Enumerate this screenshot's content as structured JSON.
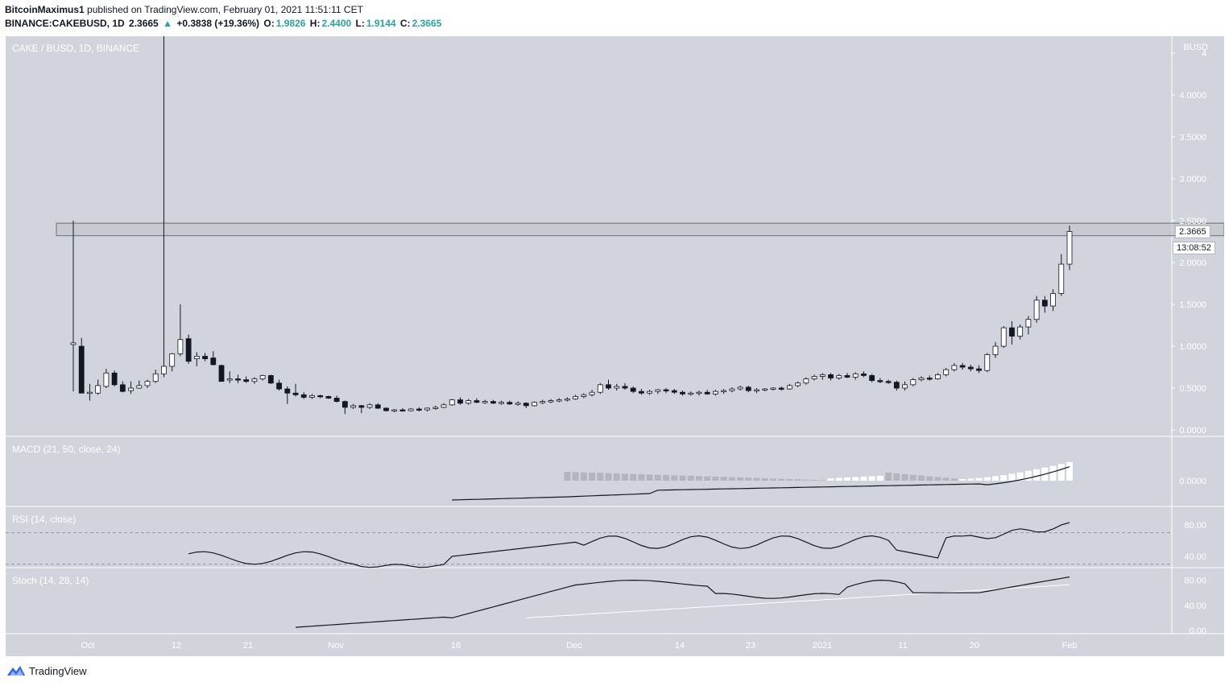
{
  "header": {
    "publisher": "BitcoinMaximus1",
    "published_text": "published on TradingView.com, February 01, 2021 11:51:11 CET",
    "symbol": "BINANCE:CAKEBUSD, 1D",
    "last": "2.3665",
    "arrow": "▲",
    "change": "+0.3838 (+19.36%)",
    "o_label": "O:",
    "o_value": "1.9826",
    "h_label": "H:",
    "h_value": "2.4400",
    "l_label": "L:",
    "l_value": "1.9144",
    "c_label": "C:",
    "c_value": "2.3665"
  },
  "colors": {
    "background": "#d1d4dc",
    "up": "#ffffff",
    "down": "#131722",
    "accent": "#26a69a"
  },
  "footer": {
    "brand": "TradingView",
    "logo_icon": "tradingview-logo-icon"
  },
  "chart_data": {
    "type": "candlestick",
    "symbol_label": "CAKE / BUSD, 1D, BINANCE",
    "currency": "BUSD",
    "y_ticks": [
      "4",
      "4.0000",
      "3.5000",
      "3.0000",
      "2.5000",
      "2.0000",
      "1.5000",
      "1.0000",
      "0.5000",
      "0.0000"
    ],
    "ylim": [
      0,
      4.5
    ],
    "x_ticks": [
      "Oct",
      "12",
      "21",
      "Nov",
      "16",
      "Dec",
      "14",
      "23",
      "2021",
      "11",
      "20",
      "Feb"
    ],
    "last_price_label": "2.3665",
    "countdown_label": "13:08:52",
    "resistance_zone": [
      2.32,
      2.47
    ],
    "candles": [
      {
        "o": 1.02,
        "h": 2.5,
        "l": 0.46,
        "c": 1.04
      },
      {
        "o": 1.0,
        "h": 1.1,
        "l": 0.44,
        "c": 0.44
      },
      {
        "o": 0.44,
        "h": 0.55,
        "l": 0.35,
        "c": 0.45
      },
      {
        "o": 0.44,
        "h": 0.6,
        "l": 0.42,
        "c": 0.53
      },
      {
        "o": 0.52,
        "h": 0.73,
        "l": 0.5,
        "c": 0.68
      },
      {
        "o": 0.68,
        "h": 0.71,
        "l": 0.52,
        "c": 0.54
      },
      {
        "o": 0.54,
        "h": 0.58,
        "l": 0.45,
        "c": 0.46
      },
      {
        "o": 0.47,
        "h": 0.58,
        "l": 0.43,
        "c": 0.5
      },
      {
        "o": 0.5,
        "h": 0.59,
        "l": 0.49,
        "c": 0.53
      },
      {
        "o": 0.53,
        "h": 0.6,
        "l": 0.5,
        "c": 0.58
      },
      {
        "o": 0.58,
        "h": 0.72,
        "l": 0.56,
        "c": 0.67
      },
      {
        "o": 0.67,
        "h": 4.8,
        "l": 0.63,
        "c": 0.76
      },
      {
        "o": 0.76,
        "h": 0.92,
        "l": 0.7,
        "c": 0.91
      },
      {
        "o": 0.91,
        "h": 1.5,
        "l": 0.88,
        "c": 1.08
      },
      {
        "o": 1.09,
        "h": 1.14,
        "l": 0.79,
        "c": 0.82
      },
      {
        "o": 0.85,
        "h": 0.93,
        "l": 0.76,
        "c": 0.88
      },
      {
        "o": 0.88,
        "h": 0.92,
        "l": 0.82,
        "c": 0.85
      },
      {
        "o": 0.86,
        "h": 0.94,
        "l": 0.77,
        "c": 0.78
      },
      {
        "o": 0.77,
        "h": 0.78,
        "l": 0.58,
        "c": 0.58
      },
      {
        "o": 0.6,
        "h": 0.7,
        "l": 0.56,
        "c": 0.61
      },
      {
        "o": 0.61,
        "h": 0.66,
        "l": 0.56,
        "c": 0.6
      },
      {
        "o": 0.6,
        "h": 0.64,
        "l": 0.56,
        "c": 0.58
      },
      {
        "o": 0.58,
        "h": 0.63,
        "l": 0.55,
        "c": 0.61
      },
      {
        "o": 0.61,
        "h": 0.66,
        "l": 0.59,
        "c": 0.65
      },
      {
        "o": 0.65,
        "h": 0.66,
        "l": 0.55,
        "c": 0.56
      },
      {
        "o": 0.56,
        "h": 0.6,
        "l": 0.47,
        "c": 0.49
      },
      {
        "o": 0.49,
        "h": 0.52,
        "l": 0.31,
        "c": 0.44
      },
      {
        "o": 0.44,
        "h": 0.55,
        "l": 0.4,
        "c": 0.42
      },
      {
        "o": 0.42,
        "h": 0.45,
        "l": 0.37,
        "c": 0.39
      },
      {
        "o": 0.39,
        "h": 0.43,
        "l": 0.37,
        "c": 0.41
      },
      {
        "o": 0.41,
        "h": 0.42,
        "l": 0.38,
        "c": 0.4
      },
      {
        "o": 0.4,
        "h": 0.41,
        "l": 0.37,
        "c": 0.38
      },
      {
        "o": 0.38,
        "h": 0.41,
        "l": 0.33,
        "c": 0.34
      },
      {
        "o": 0.34,
        "h": 0.35,
        "l": 0.19,
        "c": 0.27
      },
      {
        "o": 0.27,
        "h": 0.31,
        "l": 0.25,
        "c": 0.29
      },
      {
        "o": 0.29,
        "h": 0.3,
        "l": 0.2,
        "c": 0.27
      },
      {
        "o": 0.27,
        "h": 0.32,
        "l": 0.25,
        "c": 0.3
      },
      {
        "o": 0.3,
        "h": 0.32,
        "l": 0.25,
        "c": 0.26
      },
      {
        "o": 0.26,
        "h": 0.27,
        "l": 0.22,
        "c": 0.23
      },
      {
        "o": 0.23,
        "h": 0.25,
        "l": 0.21,
        "c": 0.24
      },
      {
        "o": 0.24,
        "h": 0.26,
        "l": 0.22,
        "c": 0.23
      },
      {
        "o": 0.23,
        "h": 0.26,
        "l": 0.22,
        "c": 0.25
      },
      {
        "o": 0.25,
        "h": 0.27,
        "l": 0.22,
        "c": 0.24
      },
      {
        "o": 0.24,
        "h": 0.27,
        "l": 0.22,
        "c": 0.26
      },
      {
        "o": 0.26,
        "h": 0.29,
        "l": 0.24,
        "c": 0.27
      },
      {
        "o": 0.27,
        "h": 0.32,
        "l": 0.26,
        "c": 0.3
      },
      {
        "o": 0.3,
        "h": 0.37,
        "l": 0.29,
        "c": 0.36
      },
      {
        "o": 0.36,
        "h": 0.39,
        "l": 0.3,
        "c": 0.32
      },
      {
        "o": 0.32,
        "h": 0.37,
        "l": 0.3,
        "c": 0.35
      },
      {
        "o": 0.35,
        "h": 0.38,
        "l": 0.32,
        "c": 0.33
      },
      {
        "o": 0.33,
        "h": 0.36,
        "l": 0.31,
        "c": 0.34
      },
      {
        "o": 0.34,
        "h": 0.36,
        "l": 0.31,
        "c": 0.32
      },
      {
        "o": 0.32,
        "h": 0.35,
        "l": 0.3,
        "c": 0.33
      },
      {
        "o": 0.33,
        "h": 0.35,
        "l": 0.3,
        "c": 0.31
      },
      {
        "o": 0.31,
        "h": 0.34,
        "l": 0.29,
        "c": 0.32
      },
      {
        "o": 0.32,
        "h": 0.33,
        "l": 0.26,
        "c": 0.29
      },
      {
        "o": 0.29,
        "h": 0.34,
        "l": 0.28,
        "c": 0.33
      },
      {
        "o": 0.33,
        "h": 0.36,
        "l": 0.31,
        "c": 0.34
      },
      {
        "o": 0.34,
        "h": 0.37,
        "l": 0.32,
        "c": 0.35
      },
      {
        "o": 0.35,
        "h": 0.38,
        "l": 0.33,
        "c": 0.36
      },
      {
        "o": 0.36,
        "h": 0.39,
        "l": 0.34,
        "c": 0.37
      },
      {
        "o": 0.37,
        "h": 0.42,
        "l": 0.36,
        "c": 0.4
      },
      {
        "o": 0.4,
        "h": 0.44,
        "l": 0.38,
        "c": 0.42
      },
      {
        "o": 0.42,
        "h": 0.48,
        "l": 0.4,
        "c": 0.45
      },
      {
        "o": 0.45,
        "h": 0.56,
        "l": 0.43,
        "c": 0.54
      },
      {
        "o": 0.54,
        "h": 0.6,
        "l": 0.48,
        "c": 0.5
      },
      {
        "o": 0.5,
        "h": 0.55,
        "l": 0.47,
        "c": 0.52
      },
      {
        "o": 0.52,
        "h": 0.56,
        "l": 0.48,
        "c": 0.5
      },
      {
        "o": 0.5,
        "h": 0.52,
        "l": 0.44,
        "c": 0.46
      },
      {
        "o": 0.46,
        "h": 0.49,
        "l": 0.42,
        "c": 0.44
      },
      {
        "o": 0.44,
        "h": 0.48,
        "l": 0.42,
        "c": 0.46
      },
      {
        "o": 0.46,
        "h": 0.49,
        "l": 0.43,
        "c": 0.48
      },
      {
        "o": 0.48,
        "h": 0.5,
        "l": 0.44,
        "c": 0.47
      },
      {
        "o": 0.47,
        "h": 0.49,
        "l": 0.43,
        "c": 0.45
      },
      {
        "o": 0.45,
        "h": 0.47,
        "l": 0.41,
        "c": 0.43
      },
      {
        "o": 0.43,
        "h": 0.46,
        "l": 0.41,
        "c": 0.44
      },
      {
        "o": 0.44,
        "h": 0.47,
        "l": 0.41,
        "c": 0.45
      },
      {
        "o": 0.45,
        "h": 0.48,
        "l": 0.42,
        "c": 0.43
      },
      {
        "o": 0.43,
        "h": 0.48,
        "l": 0.41,
        "c": 0.46
      },
      {
        "o": 0.46,
        "h": 0.49,
        "l": 0.43,
        "c": 0.47
      },
      {
        "o": 0.47,
        "h": 0.51,
        "l": 0.45,
        "c": 0.49
      },
      {
        "o": 0.49,
        "h": 0.53,
        "l": 0.47,
        "c": 0.51
      },
      {
        "o": 0.51,
        "h": 0.53,
        "l": 0.45,
        "c": 0.47
      },
      {
        "o": 0.47,
        "h": 0.5,
        "l": 0.44,
        "c": 0.48
      },
      {
        "o": 0.48,
        "h": 0.5,
        "l": 0.46,
        "c": 0.49
      },
      {
        "o": 0.49,
        "h": 0.51,
        "l": 0.47,
        "c": 0.5
      },
      {
        "o": 0.5,
        "h": 0.52,
        "l": 0.47,
        "c": 0.49
      },
      {
        "o": 0.49,
        "h": 0.55,
        "l": 0.48,
        "c": 0.53
      },
      {
        "o": 0.53,
        "h": 0.58,
        "l": 0.51,
        "c": 0.56
      },
      {
        "o": 0.56,
        "h": 0.63,
        "l": 0.54,
        "c": 0.61
      },
      {
        "o": 0.61,
        "h": 0.66,
        "l": 0.59,
        "c": 0.64
      },
      {
        "o": 0.64,
        "h": 0.68,
        "l": 0.6,
        "c": 0.66
      },
      {
        "o": 0.66,
        "h": 0.68,
        "l": 0.59,
        "c": 0.62
      },
      {
        "o": 0.62,
        "h": 0.67,
        "l": 0.6,
        "c": 0.65
      },
      {
        "o": 0.65,
        "h": 0.68,
        "l": 0.62,
        "c": 0.63
      },
      {
        "o": 0.63,
        "h": 0.69,
        "l": 0.6,
        "c": 0.67
      },
      {
        "o": 0.67,
        "h": 0.7,
        "l": 0.63,
        "c": 0.65
      },
      {
        "o": 0.65,
        "h": 0.67,
        "l": 0.57,
        "c": 0.59
      },
      {
        "o": 0.59,
        "h": 0.62,
        "l": 0.56,
        "c": 0.58
      },
      {
        "o": 0.58,
        "h": 0.6,
        "l": 0.55,
        "c": 0.57
      },
      {
        "o": 0.57,
        "h": 0.59,
        "l": 0.47,
        "c": 0.5
      },
      {
        "o": 0.5,
        "h": 0.58,
        "l": 0.47,
        "c": 0.54
      },
      {
        "o": 0.54,
        "h": 0.62,
        "l": 0.52,
        "c": 0.6
      },
      {
        "o": 0.6,
        "h": 0.64,
        "l": 0.58,
        "c": 0.62
      },
      {
        "o": 0.62,
        "h": 0.65,
        "l": 0.59,
        "c": 0.61
      },
      {
        "o": 0.61,
        "h": 0.68,
        "l": 0.6,
        "c": 0.66
      },
      {
        "o": 0.66,
        "h": 0.74,
        "l": 0.64,
        "c": 0.72
      },
      {
        "o": 0.72,
        "h": 0.8,
        "l": 0.7,
        "c": 0.77
      },
      {
        "o": 0.77,
        "h": 0.8,
        "l": 0.72,
        "c": 0.75
      },
      {
        "o": 0.75,
        "h": 0.78,
        "l": 0.7,
        "c": 0.73
      },
      {
        "o": 0.73,
        "h": 0.77,
        "l": 0.68,
        "c": 0.71
      },
      {
        "o": 0.71,
        "h": 0.92,
        "l": 0.69,
        "c": 0.9
      },
      {
        "o": 0.9,
        "h": 1.05,
        "l": 0.86,
        "c": 1.0
      },
      {
        "o": 1.0,
        "h": 1.24,
        "l": 0.98,
        "c": 1.22
      },
      {
        "o": 1.22,
        "h": 1.3,
        "l": 1.02,
        "c": 1.12
      },
      {
        "o": 1.12,
        "h": 1.26,
        "l": 1.08,
        "c": 1.23
      },
      {
        "o": 1.23,
        "h": 1.36,
        "l": 1.14,
        "c": 1.32
      },
      {
        "o": 1.32,
        "h": 1.6,
        "l": 1.28,
        "c": 1.55
      },
      {
        "o": 1.55,
        "h": 1.6,
        "l": 1.4,
        "c": 1.48
      },
      {
        "o": 1.48,
        "h": 1.68,
        "l": 1.42,
        "c": 1.63
      },
      {
        "o": 1.63,
        "h": 2.1,
        "l": 1.6,
        "c": 1.98
      },
      {
        "o": 1.98,
        "h": 2.44,
        "l": 1.91,
        "c": 2.37
      }
    ],
    "panes": [
      {
        "name": "MACD (21, 50, close, 24)",
        "y_ticks": [
          "0.0000"
        ]
      },
      {
        "name": "RSI (14, close)",
        "y_ticks": [
          "80.00",
          "40.00"
        ],
        "bands": [
          70,
          30
        ]
      },
      {
        "name": "Stoch (14, 28, 14)",
        "y_ticks": [
          "80.00",
          "40.00",
          "0.00"
        ]
      }
    ],
    "grid": false
  }
}
